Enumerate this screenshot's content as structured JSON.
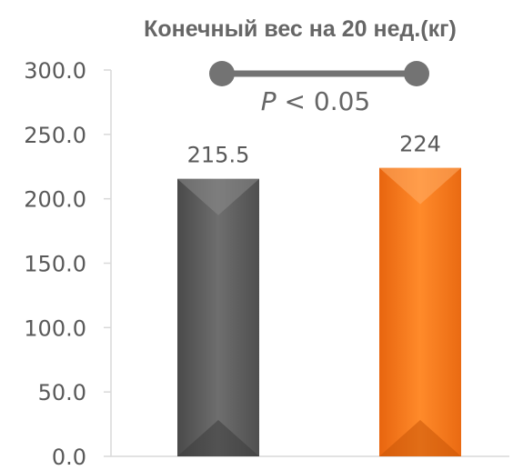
{
  "chart_data": {
    "type": "bar",
    "title": "Конечный вес на 20 нед.(кг)",
    "categories": [
      "",
      ""
    ],
    "values": [
      215.5,
      224
    ],
    "data_labels": [
      "215.5",
      "224"
    ],
    "bar_colors": [
      "#666666",
      "#f47a1f"
    ],
    "ylim": [
      0,
      300
    ],
    "yticks": [
      "0.0",
      "50.0",
      "100.0",
      "150.0",
      "200.0",
      "250.0",
      "300.0"
    ],
    "grid": false,
    "legend": "none",
    "annotation": {
      "text_italic": "P",
      "text_rest": " < 0.05",
      "bracket_color": "#737373"
    }
  }
}
